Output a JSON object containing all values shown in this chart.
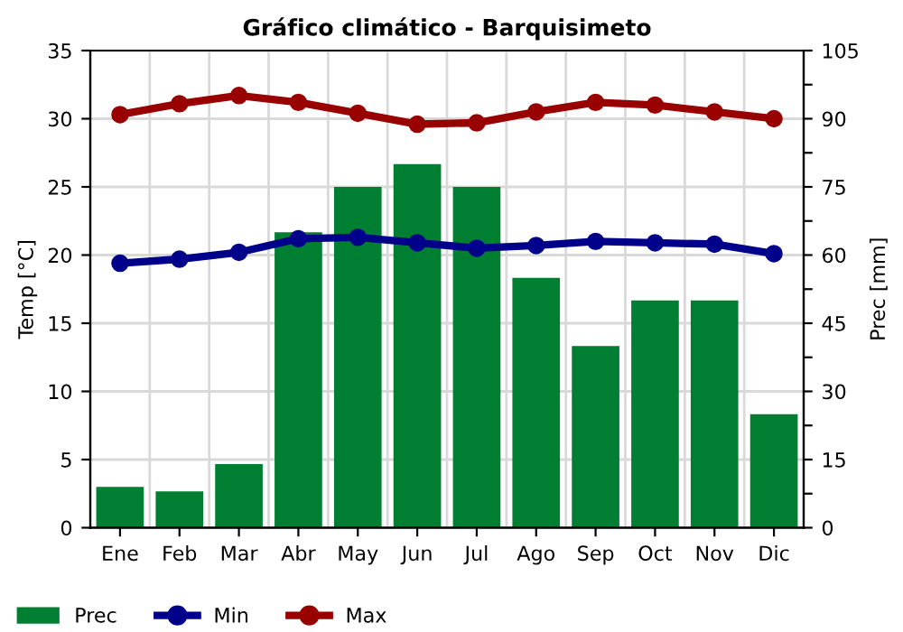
{
  "chart_data": {
    "type": "bar",
    "title": "Gráfico climático - Barquisimeto",
    "ylabel": "Temp [°C]",
    "y2label": "Prec [mm]",
    "categories": [
      "Ene",
      "Feb",
      "Mar",
      "Abr",
      "May",
      "Jun",
      "Jul",
      "Ago",
      "Sep",
      "Oct",
      "Nov",
      "Dic"
    ],
    "series": [
      {
        "name": "Prec",
        "axis": "y2",
        "color": "#007f33",
        "values": [
          9,
          8,
          14,
          65,
          75,
          80,
          75,
          55,
          40,
          50,
          50,
          25
        ]
      },
      {
        "name": "Min",
        "type": "line",
        "axis": "y",
        "color": "#00008b",
        "marker": "circle",
        "values": [
          19.4,
          19.7,
          20.2,
          21.2,
          21.3,
          20.9,
          20.5,
          20.7,
          21.0,
          20.9,
          20.8,
          20.1
        ]
      },
      {
        "name": "Max",
        "type": "line",
        "axis": "y",
        "color": "#990000",
        "marker": "circle",
        "values": [
          30.3,
          31.1,
          31.7,
          31.2,
          30.4,
          29.6,
          29.7,
          30.5,
          31.2,
          31.0,
          30.5,
          30.0
        ]
      }
    ],
    "ylim": [
      0,
      35
    ],
    "yticks": [
      0,
      5,
      10,
      15,
      20,
      25,
      30,
      35
    ],
    "y2lim": [
      0,
      105
    ],
    "y2ticks": [
      0,
      {
        "value": 7.5,
        "label": null
      },
      15,
      {
        "value": 22.5,
        "label": null
      },
      30,
      {
        "value": 37.5,
        "label": null
      },
      45,
      {
        "value": 52.5,
        "label": null
      },
      60,
      {
        "value": 67.5,
        "label": null
      },
      75,
      {
        "value": 82.5,
        "label": null
      },
      90,
      {
        "value": 97.5,
        "label": null
      },
      105
    ],
    "grid": true,
    "legend": "bottom"
  }
}
